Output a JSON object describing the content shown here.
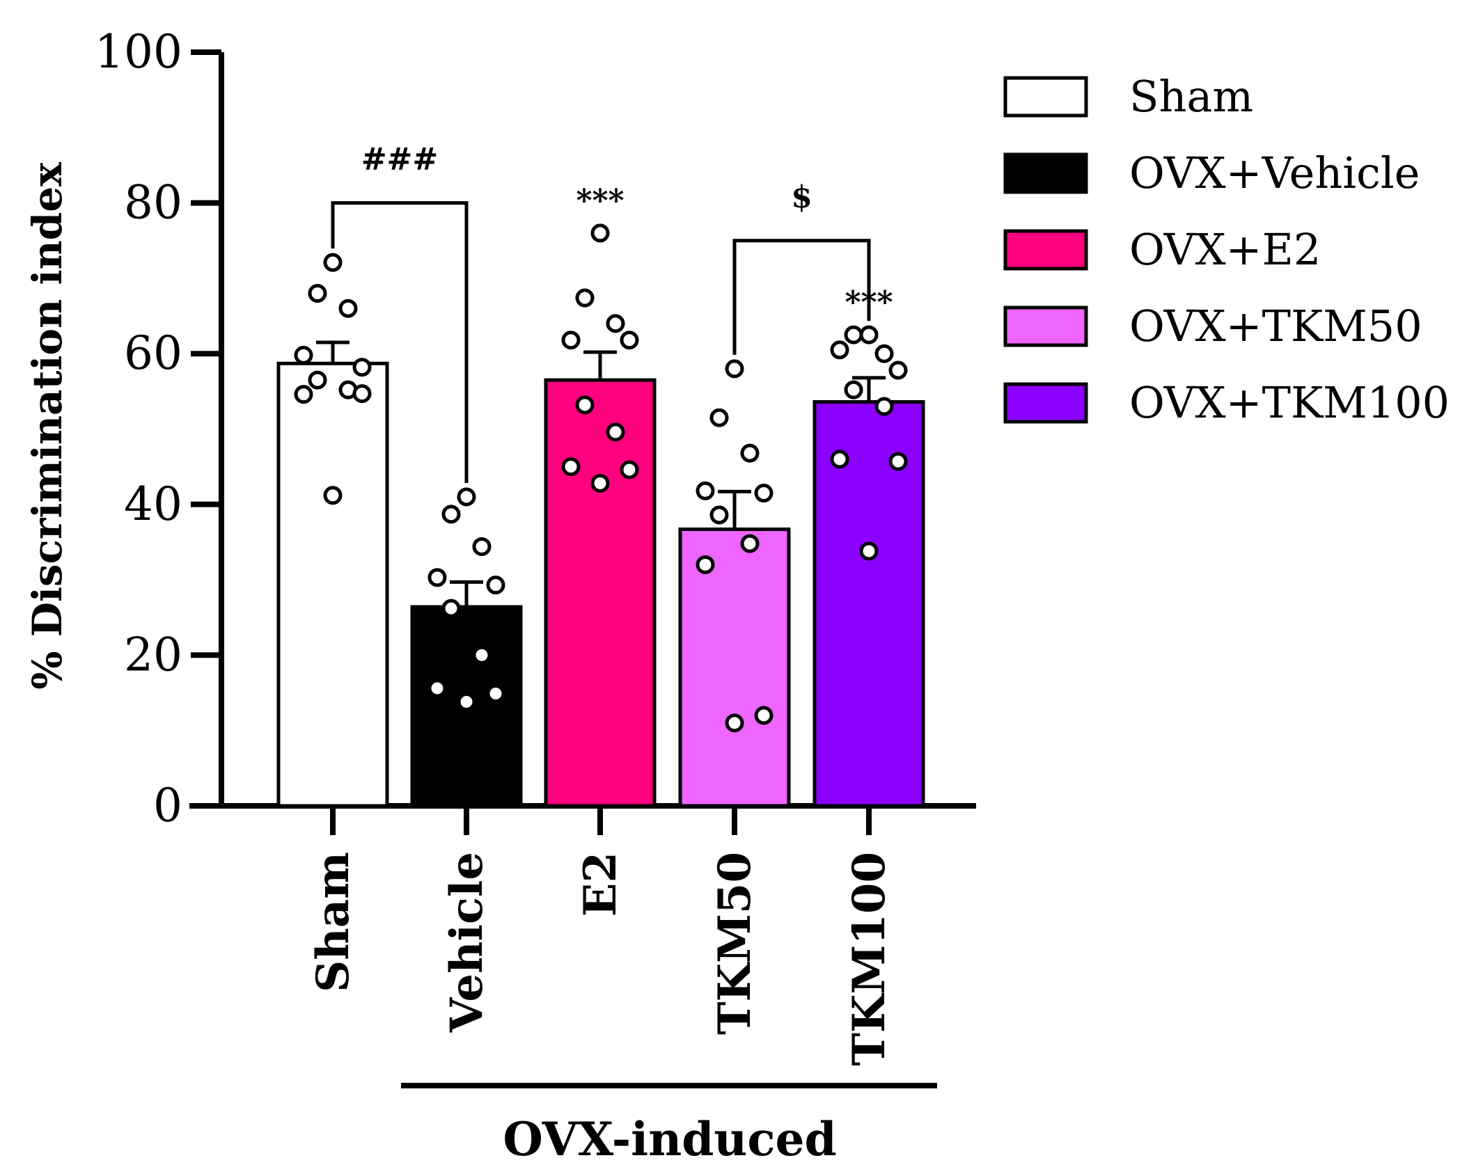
{
  "chart_data": {
    "type": "bar",
    "ylabel": "% Discrimination index",
    "ylim": [
      0,
      100
    ],
    "yticks": [
      0,
      20,
      40,
      60,
      80,
      100
    ],
    "categories": [
      "Sham",
      "Vehicle",
      "E2",
      "TKM50",
      "TKM100"
    ],
    "group_label": "OVX-induced",
    "series": [
      {
        "name": "Sham",
        "category": "Sham",
        "mean": 58.7,
        "sem": 2.8,
        "color": "#ffffff",
        "points": [
          72.1,
          68.0,
          66.0,
          59.8,
          58.2,
          56.5,
          55.2,
          54.6,
          54.7,
          41.2
        ]
      },
      {
        "name": "OVX+Vehicle",
        "category": "Vehicle",
        "mean": 26.4,
        "sem": 3.3,
        "color": "#000000",
        "points": [
          41.0,
          38.7,
          34.4,
          30.3,
          29.3,
          26.2,
          20.0,
          15.6,
          14.9,
          13.8
        ]
      },
      {
        "name": "OVX+E2",
        "category": "E2",
        "mean": 56.5,
        "sem": 3.7,
        "color": "#ff007f",
        "points": [
          76.0,
          67.4,
          64.0,
          61.8,
          61.8,
          53.2,
          49.6,
          45.0,
          44.6,
          42.8
        ]
      },
      {
        "name": "OVX+TKM50",
        "category": "TKM50",
        "mean": 36.7,
        "sem": 5.0,
        "color": "#ee66ff",
        "points": [
          58.0,
          51.5,
          46.8,
          41.8,
          41.5,
          38.6,
          34.8,
          32.0,
          12.0,
          11.0
        ]
      },
      {
        "name": "OVX+TKM100",
        "category": "TKM100",
        "mean": 53.6,
        "sem": 3.2,
        "color": "#8b00ff",
        "points": [
          62.5,
          62.5,
          60.0,
          60.5,
          57.8,
          55.2,
          53.0,
          46.0,
          45.7,
          33.8
        ]
      }
    ],
    "annotations": [
      {
        "text": "###",
        "type": "bracket",
        "from": "Sham",
        "to": "Vehicle",
        "y": 80
      },
      {
        "text": "$",
        "type": "bracket",
        "from": "TKM50",
        "to": "TKM100",
        "y": 75
      },
      {
        "text": "***",
        "type": "star",
        "over": "E2"
      },
      {
        "text": "***",
        "type": "star",
        "over": "TKM100"
      }
    ],
    "legend_position": "right"
  }
}
